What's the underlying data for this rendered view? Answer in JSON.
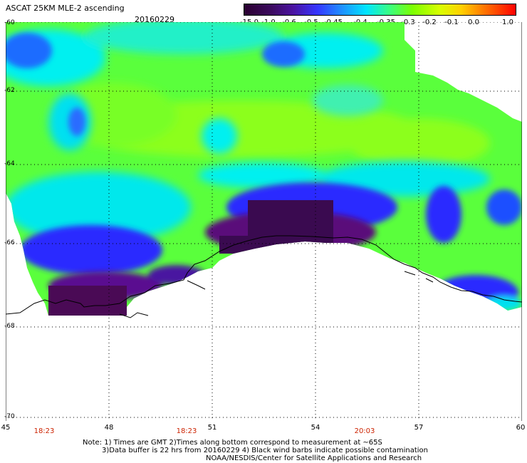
{
  "header": {
    "title": "ASCAT 25KM MLE-2 ascending",
    "date": "20160229"
  },
  "colorbar": {
    "ticks": [
      "-15.0",
      "-1.0",
      "-0.6",
      "-0.5",
      "-0.45",
      "-0.4",
      "-0.35",
      "-0.3",
      "-0.2",
      "-0.1",
      "0.0",
      "1.0"
    ]
  },
  "axes": {
    "lat_labels": [
      "-60",
      "-62",
      "-64",
      "-66",
      "-68",
      "-70"
    ],
    "lon_labels": [
      "45",
      "48",
      "51",
      "54",
      "57",
      "60"
    ],
    "time_labels": [
      "18:23",
      "18:23",
      "20:03"
    ]
  },
  "footer": {
    "note_line1": "Note: 1) Times are GMT 2)Times along bottom correspond to measurement at ~65S",
    "note_line2": "3)Data buffer is 22 hrs from 20160229 4) Black wind barbs indicate possible contamination",
    "credit": "NOAA/NESDIS/Center for Satellite Applications and Research"
  },
  "colors": {
    "ocean_green": "#5aff3c",
    "cyan": "#00f0f0",
    "blue": "#2a2aff",
    "purple": "#5a0f7a",
    "dark_purple": "#3a0a50",
    "time_red": "#cc2200"
  }
}
